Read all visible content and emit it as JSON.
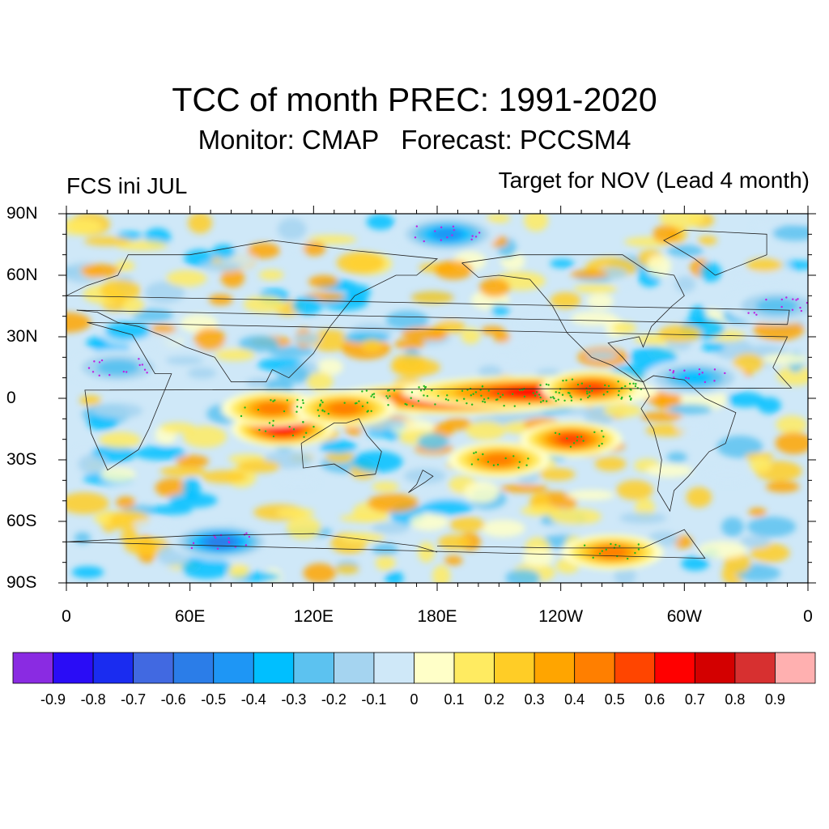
{
  "title": "TCC of month PREC: 1991-2020",
  "subtitle": "Monitor: CMAP   Forecast: PCCSM4",
  "left_label": "FCS ini JUL",
  "right_label": "Target for NOV (Lead 4 month)",
  "lat_ticks": [
    "90N",
    "60N",
    "30N",
    "0",
    "30S",
    "60S",
    "90S"
  ],
  "lon_ticks": [
    "0",
    "60E",
    "120E",
    "180E",
    "120W",
    "60W",
    "0"
  ],
  "colorbar": {
    "labels": [
      "-0.9",
      "-0.8",
      "-0.7",
      "-0.6",
      "-0.5",
      "-0.4",
      "-0.3",
      "-0.2",
      "-0.1",
      "0",
      "0.1",
      "0.2",
      "0.3",
      "0.4",
      "0.5",
      "0.6",
      "0.7",
      "0.8",
      "0.9"
    ],
    "colors": [
      "#8a2be2",
      "#2a0cf6",
      "#1a2cf0",
      "#4169e1",
      "#2b7de8",
      "#1e96f5",
      "#00bfff",
      "#5cc2f0",
      "#a5d4f0",
      "#cfe8f8",
      "#ffffc8",
      "#ffeb61",
      "#ffcd26",
      "#ffa500",
      "#ff7f00",
      "#ff4500",
      "#ff0000",
      "#d30000",
      "#d73030",
      "#ffb0b0"
    ]
  },
  "chart_data": {
    "type": "heatmap",
    "title": "TCC of month PREC: 1991-2020",
    "subtitle": "Monitor: CMAP   Forecast: PCCSM4",
    "xlabel": "",
    "ylabel": "",
    "xlim": [
      0,
      360
    ],
    "ylim": [
      -90,
      90
    ],
    "x_ticks": [
      "0",
      "60E",
      "120E",
      "180E",
      "120W",
      "60W",
      "0"
    ],
    "y_ticks": [
      "90N",
      "60N",
      "30N",
      "0",
      "30S",
      "60S",
      "90S"
    ],
    "levels": [
      -0.9,
      -0.8,
      -0.7,
      -0.6,
      -0.5,
      -0.4,
      -0.3,
      -0.2,
      -0.1,
      0,
      0.1,
      0.2,
      0.3,
      0.4,
      0.5,
      0.6,
      0.7,
      0.8,
      0.9
    ],
    "features": [
      {
        "lon": 190,
        "lat": 0,
        "value": 0.75
      },
      {
        "lon": 225,
        "lat": 3,
        "value": 0.7
      },
      {
        "lon": 255,
        "lat": 5,
        "value": 0.6
      },
      {
        "lon": 105,
        "lat": -15,
        "value": 0.65
      },
      {
        "lon": 100,
        "lat": -5,
        "value": 0.5
      },
      {
        "lon": 135,
        "lat": -5,
        "value": 0.45
      },
      {
        "lon": 245,
        "lat": -20,
        "value": 0.55
      },
      {
        "lon": 210,
        "lat": -30,
        "value": 0.45
      },
      {
        "lon": 265,
        "lat": -75,
        "value": 0.5
      },
      {
        "lon": 75,
        "lat": -70,
        "value": -0.6
      },
      {
        "lon": 185,
        "lat": 80,
        "value": -0.5
      },
      {
        "lon": 305,
        "lat": 10,
        "value": -0.4
      },
      {
        "lon": 25,
        "lat": 15,
        "value": -0.3
      },
      {
        "lon": 345,
        "lat": 45,
        "value": -0.35
      }
    ]
  }
}
